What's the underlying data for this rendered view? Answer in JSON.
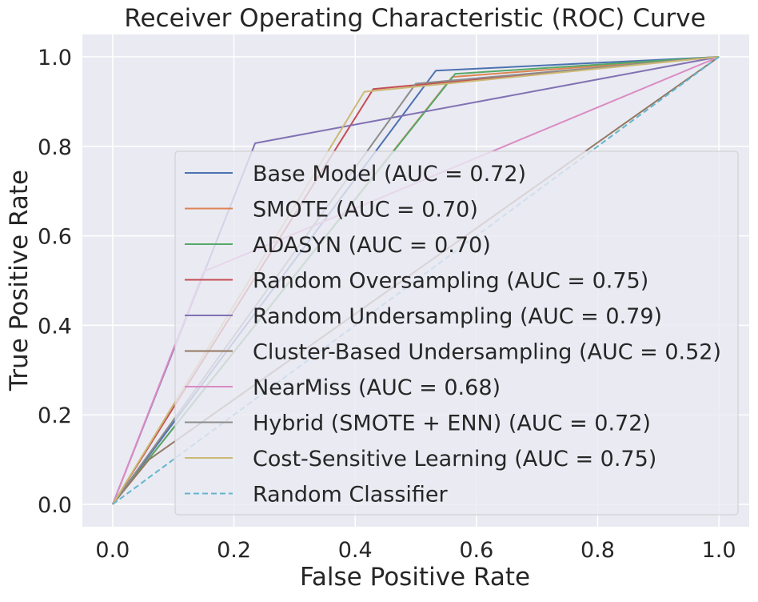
{
  "chart_data": {
    "type": "line",
    "title": "Receiver Operating Characteristic (ROC) Curve",
    "xlabel": "False Positive Rate",
    "ylabel": "True Positive Rate",
    "xlim": [
      -0.05,
      1.05
    ],
    "ylim": [
      -0.05,
      1.05
    ],
    "xticks": [
      "0.0",
      "0.2",
      "0.4",
      "0.6",
      "0.8",
      "1.0"
    ],
    "yticks": [
      "0.0",
      "0.2",
      "0.4",
      "0.6",
      "0.8",
      "1.0"
    ],
    "grid": true,
    "legend_position": "lower-right",
    "series": [
      {
        "name": "Base Model (AUC = 0.72)",
        "color": "#4c72b0",
        "dashed": false,
        "x": [
          0,
          0.533,
          1
        ],
        "y": [
          0,
          0.969,
          1
        ]
      },
      {
        "name": "SMOTE (AUC = 0.70)",
        "color": "#dd8452",
        "dashed": false,
        "x": [
          0,
          0.56,
          1
        ],
        "y": [
          0,
          0.955,
          1
        ]
      },
      {
        "name": "ADASYN (AUC = 0.70)",
        "color": "#55a868",
        "dashed": false,
        "x": [
          0,
          0.565,
          1
        ],
        "y": [
          0,
          0.962,
          1
        ]
      },
      {
        "name": "Random Oversampling (AUC = 0.75)",
        "color": "#c44e52",
        "dashed": false,
        "x": [
          0,
          0.43,
          1
        ],
        "y": [
          0,
          0.928,
          1
        ]
      },
      {
        "name": "Random Undersampling (AUC = 0.79)",
        "color": "#8172b3",
        "dashed": false,
        "x": [
          0,
          0.235,
          1
        ],
        "y": [
          0,
          0.807,
          1
        ]
      },
      {
        "name": "Cluster-Based Undersampling (AUC = 0.52)",
        "color": "#937860",
        "dashed": false,
        "x": [
          0,
          0.06,
          1
        ],
        "y": [
          0,
          0.1,
          1
        ]
      },
      {
        "name": "NearMiss (AUC = 0.68)",
        "color": "#da8bc3",
        "dashed": false,
        "x": [
          0,
          0.15,
          1
        ],
        "y": [
          0,
          0.52,
          1
        ]
      },
      {
        "name": "Hybrid (SMOTE + ENN) (AUC = 0.72)",
        "color": "#8c8c8c",
        "dashed": false,
        "x": [
          0,
          0.5,
          1
        ],
        "y": [
          0,
          0.94,
          1
        ]
      },
      {
        "name": "Cost-Sensitive Learning (AUC = 0.75)",
        "color": "#ccb974",
        "dashed": false,
        "x": [
          0,
          0.415,
          1
        ],
        "y": [
          0,
          0.922,
          1
        ]
      },
      {
        "name": "Random Classifier",
        "color": "#64b5cd",
        "dashed": true,
        "x": [
          0,
          1
        ],
        "y": [
          0,
          1
        ]
      }
    ]
  }
}
